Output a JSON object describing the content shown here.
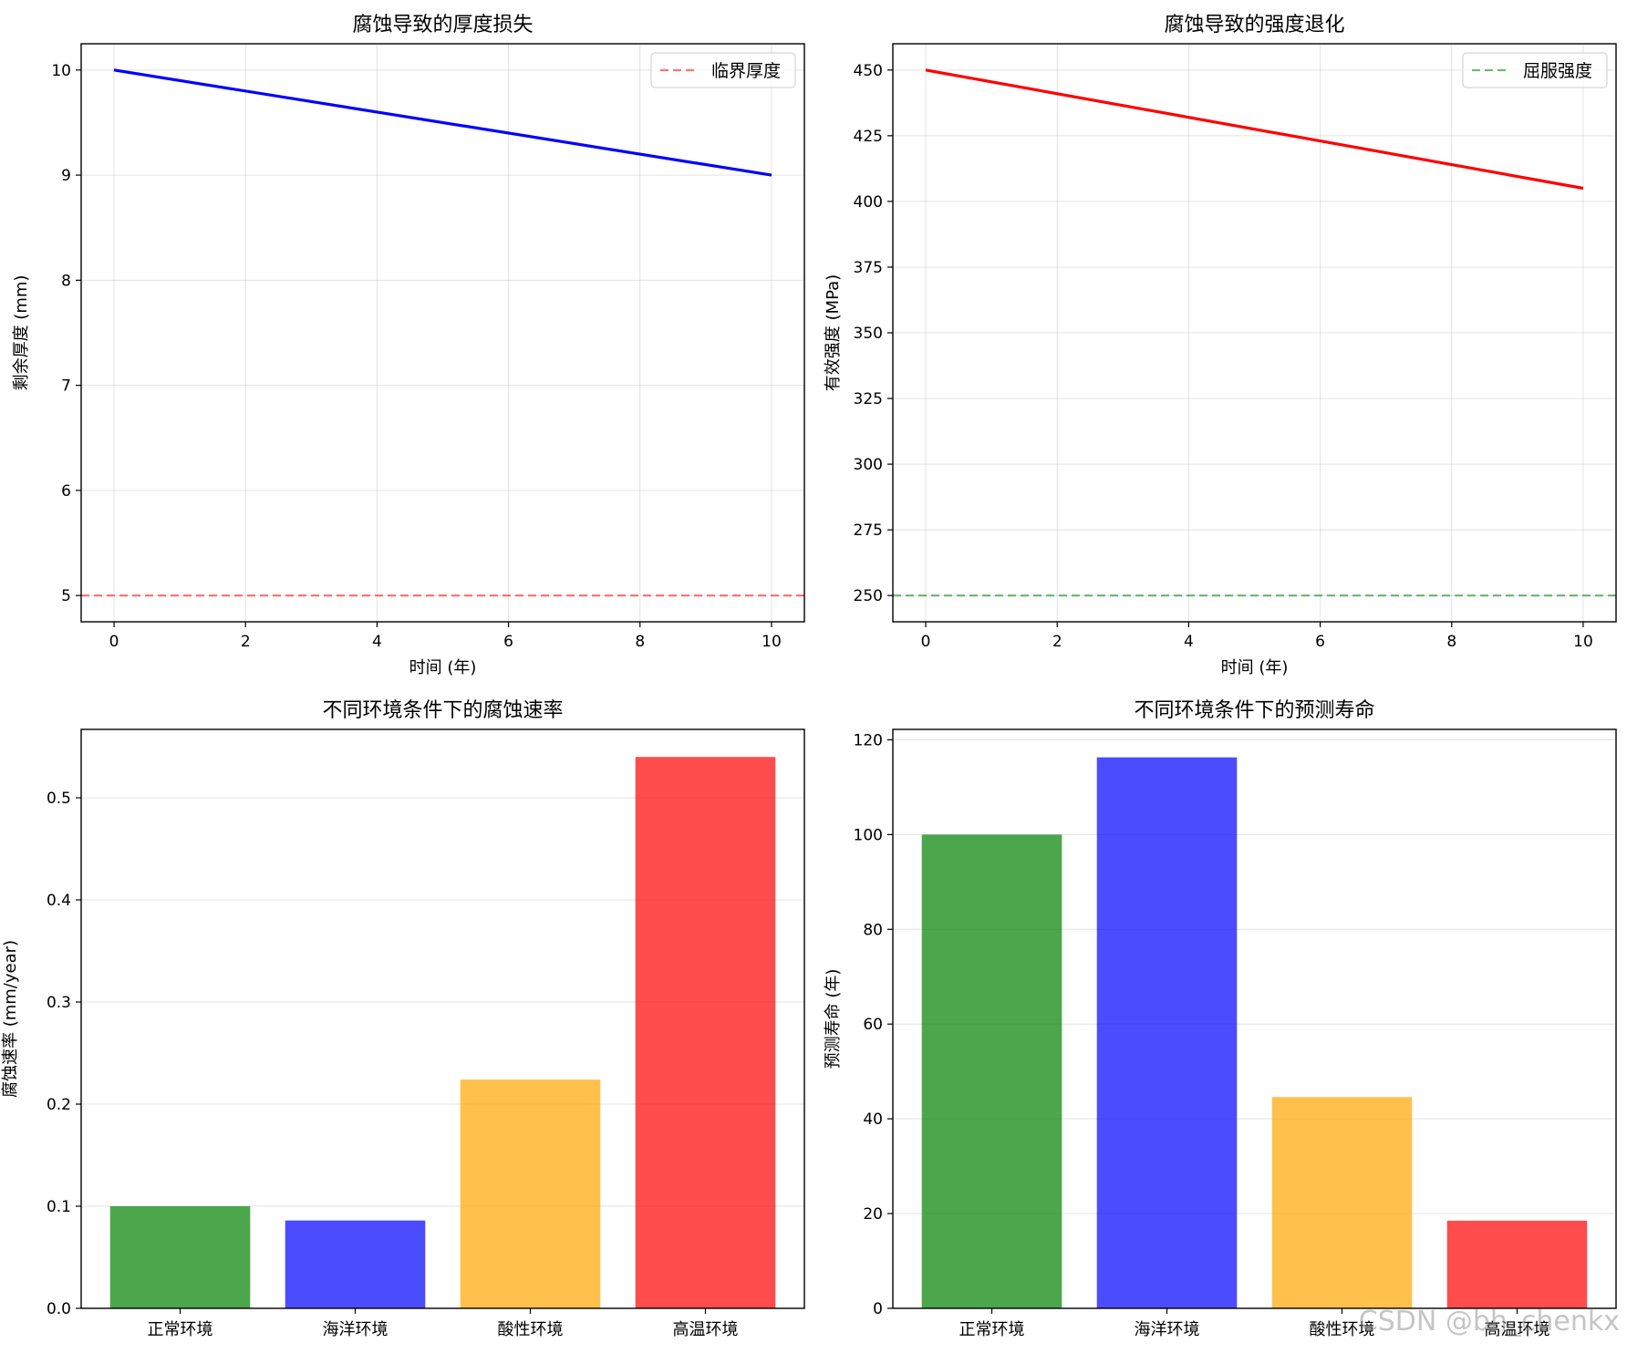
{
  "watermark": "CSDN @bh_chenkx",
  "chart_data": [
    {
      "type": "line",
      "title": "腐蚀导致的厚度损失",
      "xlabel": "时间 (年)",
      "ylabel": "剩余厚度 (mm)",
      "xlim": [
        -0.5,
        10.5
      ],
      "ylim": [
        4.75,
        10.25
      ],
      "xticks": [
        0,
        2,
        4,
        6,
        8,
        10
      ],
      "yticks": [
        5,
        6,
        7,
        8,
        9,
        10
      ],
      "grid": true,
      "series": [
        {
          "name": "剩余厚度",
          "x": [
            0,
            10
          ],
          "y": [
            10,
            9
          ],
          "color": "#0000ff"
        }
      ],
      "hline": {
        "value": 5,
        "label": "临界厚度",
        "color": "#ff0000"
      },
      "legend": "top-right"
    },
    {
      "type": "line",
      "title": "腐蚀导致的强度退化",
      "xlabel": "时间 (年)",
      "ylabel": "有效强度 (MPa)",
      "xlim": [
        -0.5,
        10.5
      ],
      "ylim": [
        240,
        460
      ],
      "xticks": [
        0,
        2,
        4,
        6,
        8,
        10
      ],
      "yticks": [
        250,
        275,
        300,
        325,
        350,
        375,
        400,
        425,
        450
      ],
      "grid": true,
      "series": [
        {
          "name": "有效强度",
          "x": [
            0,
            10
          ],
          "y": [
            450,
            405
          ],
          "color": "#ff0000"
        }
      ],
      "hline": {
        "value": 250,
        "label": "屈服强度",
        "color": "#008000"
      },
      "legend": "top-right"
    },
    {
      "type": "bar",
      "title": "不同环境条件下的腐蚀速率",
      "xlabel": "",
      "ylabel": "腐蚀速率 (mm/year)",
      "categories": [
        "正常环境",
        "海洋环境",
        "酸性环境",
        "高温环境"
      ],
      "values": [
        0.1,
        0.086,
        0.224,
        0.54
      ],
      "colors": [
        "#008000",
        "#0000ff",
        "#ffa500",
        "#ff0000"
      ],
      "ylim": [
        0,
        0.567
      ],
      "yticks": [
        0.0,
        0.1,
        0.2,
        0.3,
        0.4,
        0.5
      ],
      "ytick_labels": [
        "0.0",
        "0.1",
        "0.2",
        "0.3",
        "0.4",
        "0.5"
      ],
      "grid": true
    },
    {
      "type": "bar",
      "title": "不同环境条件下的预测寿命",
      "xlabel": "",
      "ylabel": "预测寿命 (年)",
      "categories": [
        "正常环境",
        "海洋环境",
        "酸性环境",
        "高温环境"
      ],
      "values": [
        100,
        116.3,
        44.6,
        18.5
      ],
      "colors": [
        "#008000",
        "#0000ff",
        "#ffa500",
        "#ff0000"
      ],
      "ylim": [
        0,
        122.2
      ],
      "yticks": [
        0,
        20,
        40,
        60,
        80,
        100,
        120
      ],
      "ytick_labels": [
        "0",
        "20",
        "40",
        "60",
        "80",
        "100",
        "120"
      ],
      "grid": true
    }
  ]
}
